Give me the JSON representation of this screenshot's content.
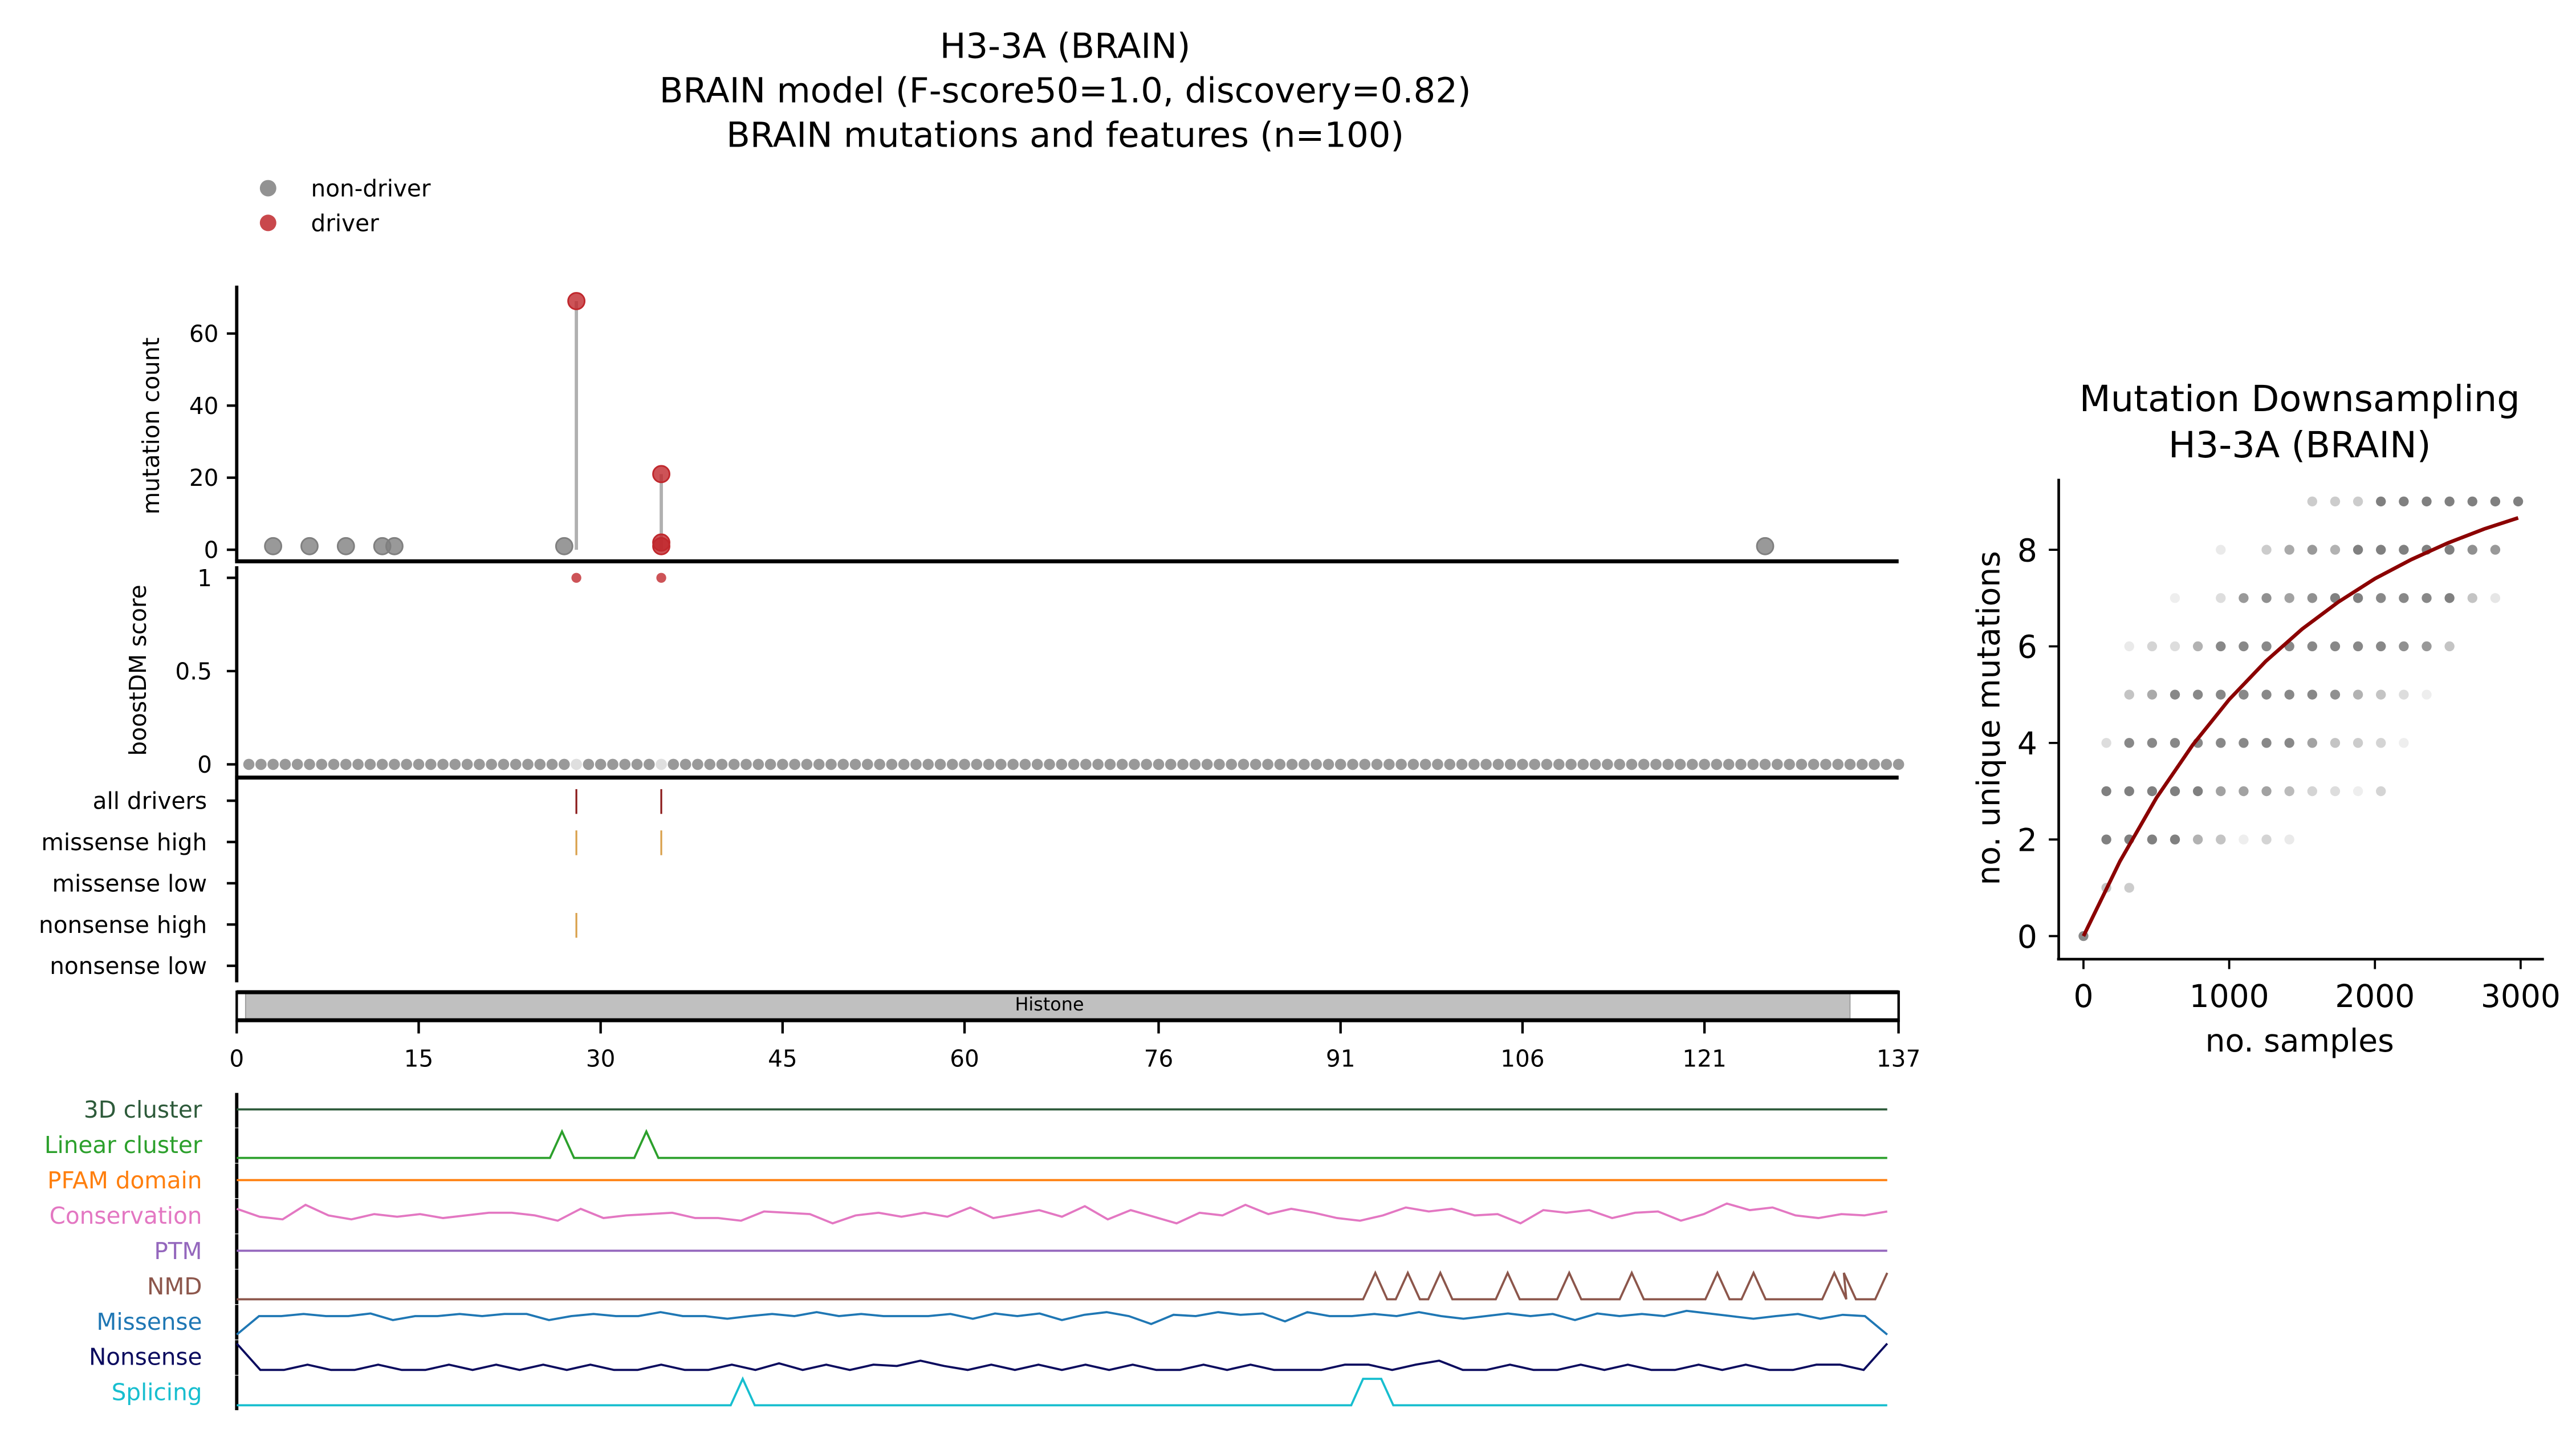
{
  "main_title": [
    "H3-3A (BRAIN)",
    "BRAIN model (F-score50=1.0, discovery=0.82)",
    "BRAIN mutations and features (n=100)"
  ],
  "legend": [
    {
      "label": "non-driver",
      "color": "#7f7f7f"
    },
    {
      "label": "driver",
      "color": "#c0282d"
    }
  ],
  "colors": {
    "non_driver": "#7f7f7f",
    "driver": "#c0282d",
    "stem": "#b0b0b0",
    "all_drivers": "#8b1a1a",
    "high": "#d9a04a",
    "domain_fill": "#c0c0c0",
    "curve": "#8b0000",
    "scatter": "#555555"
  },
  "chart_data": [
    {
      "type": "scatter",
      "panel": "mutation-count",
      "ylabel": "mutation count",
      "yticks": [
        0,
        20,
        40,
        60
      ],
      "xlim": [
        0,
        137
      ],
      "points": [
        {
          "pos": 3,
          "count": 1,
          "class": "non-driver"
        },
        {
          "pos": 6,
          "count": 1,
          "class": "non-driver"
        },
        {
          "pos": 9,
          "count": 1,
          "class": "non-driver"
        },
        {
          "pos": 12,
          "count": 1,
          "class": "non-driver"
        },
        {
          "pos": 13,
          "count": 1,
          "class": "non-driver"
        },
        {
          "pos": 27,
          "count": 1,
          "class": "non-driver"
        },
        {
          "pos": 28,
          "count": 69,
          "class": "driver"
        },
        {
          "pos": 35,
          "count": 21,
          "class": "driver"
        },
        {
          "pos": 35,
          "count": 2,
          "class": "driver"
        },
        {
          "pos": 35,
          "count": 1,
          "class": "driver"
        },
        {
          "pos": 126,
          "count": 1,
          "class": "non-driver"
        }
      ],
      "stems": [
        {
          "pos": 28,
          "max": 69
        },
        {
          "pos": 35,
          "max": 21
        }
      ]
    },
    {
      "type": "scatter",
      "panel": "boostdm",
      "ylabel": "boostDM score",
      "yticks": [
        0,
        0.5,
        1
      ],
      "ytick_labels": [
        "0",
        "0.5",
        "1"
      ],
      "position_range": [
        1,
        137
      ],
      "default_score": 0,
      "drivers": [
        {
          "pos": 28,
          "score": 1
        },
        {
          "pos": 35,
          "score": 1
        }
      ]
    },
    {
      "type": "table",
      "panel": "driver-tracks",
      "rows": [
        {
          "label": "all drivers",
          "positions": [
            28,
            35
          ],
          "color_key": "all_drivers"
        },
        {
          "label": "missense high",
          "positions": [
            28,
            35
          ],
          "color_key": "high"
        },
        {
          "label": "missense low",
          "positions": [],
          "color_key": "high"
        },
        {
          "label": "nonsense high",
          "positions": [
            28
          ],
          "color_key": "high"
        },
        {
          "label": "nonsense low",
          "positions": [],
          "color_key": "high"
        }
      ]
    },
    {
      "type": "bar",
      "panel": "domain",
      "domains": [
        {
          "name": "Histone",
          "start": 1,
          "end": 133
        }
      ],
      "xticks": [
        0,
        15,
        30,
        45,
        60,
        76,
        91,
        106,
        121,
        137
      ]
    },
    {
      "type": "line",
      "panel": "features",
      "xlim": [
        0,
        137
      ],
      "tracks": [
        {
          "label": "3D cluster",
          "color": "#2d5a3a",
          "const": 0.5
        },
        {
          "label": "Linear cluster",
          "color": "#2ca02c",
          "peaks": [
            27,
            34
          ]
        },
        {
          "label": "PFAM domain",
          "color": "#ff7f0e",
          "const": 0.5
        },
        {
          "label": "Conservation",
          "color": "#e377c2",
          "values": [
            0.75,
            0.45,
            0.35,
            0.9,
            0.5,
            0.35,
            0.55,
            0.45,
            0.55,
            0.4,
            0.5,
            0.6,
            0.6,
            0.5,
            0.3,
            0.75,
            0.4,
            0.5,
            0.55,
            0.6,
            0.4,
            0.4,
            0.3,
            0.65,
            0.6,
            0.55,
            0.2,
            0.5,
            0.6,
            0.45,
            0.6,
            0.45,
            0.8,
            0.4,
            0.55,
            0.7,
            0.45,
            0.85,
            0.35,
            0.7,
            0.45,
            0.2,
            0.6,
            0.5,
            0.9,
            0.55,
            0.75,
            0.6,
            0.4,
            0.3,
            0.5,
            0.8,
            0.65,
            0.75,
            0.5,
            0.55,
            0.2,
            0.7,
            0.6,
            0.7,
            0.4,
            0.6,
            0.65,
            0.3,
            0.55,
            0.95,
            0.7,
            0.8,
            0.5,
            0.4,
            0.55,
            0.5,
            0.65
          ]
        },
        {
          "label": "PTM",
          "color": "#9467bd",
          "const": 0.5
        },
        {
          "label": "NMD",
          "color": "#8c564b",
          "peaks": [
            94.5,
            97.2,
            99.9,
            105.5,
            110.6,
            115.8,
            122.9,
            125.9,
            132.6,
            133.4,
            137
          ]
        },
        {
          "label": "Missense",
          "color": "#1f77b4",
          "values": [
            0,
            0.7,
            0.7,
            0.78,
            0.7,
            0.7,
            0.8,
            0.55,
            0.7,
            0.7,
            0.78,
            0.7,
            0.78,
            0.78,
            0.55,
            0.7,
            0.78,
            0.7,
            0.7,
            0.85,
            0.7,
            0.7,
            0.6,
            0.7,
            0.78,
            0.7,
            0.85,
            0.7,
            0.78,
            0.7,
            0.7,
            0.7,
            0.78,
            0.6,
            0.8,
            0.7,
            0.8,
            0.55,
            0.75,
            0.85,
            0.7,
            0.4,
            0.75,
            0.7,
            0.85,
            0.75,
            0.8,
            0.5,
            0.85,
            0.7,
            0.7,
            0.78,
            0.7,
            0.85,
            0.7,
            0.6,
            0.7,
            0.8,
            0.7,
            0.78,
            0.55,
            0.8,
            0.7,
            0.78,
            0.7,
            0.9,
            0.8,
            0.7,
            0.6,
            0.7,
            0.78,
            0.6,
            0.75,
            0.7,
            0
          ]
        },
        {
          "label": "Nonsense",
          "color": "#0b0b5e",
          "values": [
            1,
            0,
            0,
            0.2,
            0,
            0,
            0.2,
            0,
            0,
            0.2,
            0,
            0.2,
            0,
            0.2,
            0,
            0.2,
            0,
            0,
            0.2,
            0,
            0,
            0.2,
            0,
            0.25,
            0,
            0.2,
            0,
            0.2,
            0.15,
            0.35,
            0.15,
            0,
            0.2,
            0,
            0.2,
            0,
            0.2,
            0,
            0.2,
            0,
            0,
            0.2,
            0,
            0.2,
            0,
            0,
            0,
            0.2,
            0.2,
            0,
            0.2,
            0.35,
            0,
            0,
            0.2,
            0,
            0,
            0.2,
            0,
            0.2,
            0,
            0,
            0.2,
            0,
            0.2,
            0,
            0,
            0.2,
            0.2,
            0,
            1
          ]
        },
        {
          "label": "Splicing",
          "color": "#17becf",
          "peaks": [
            42
          ],
          "plateaus": [
            [
              93.5,
              95
            ]
          ]
        }
      ]
    },
    {
      "type": "scatter",
      "panel": "downsampling",
      "title": [
        "Mutation Downsampling",
        "H3-3A (BRAIN)"
      ],
      "xlabel": "no. samples",
      "ylabel": "no. unique mutations",
      "xticks": [
        0,
        1000,
        2000,
        3000
      ],
      "yticks": [
        0,
        2,
        4,
        6,
        8
      ],
      "xlim": [
        -170,
        3150
      ],
      "ylim": [
        -0.45,
        9.5
      ],
      "rows": [
        {
          "y": 9,
          "x": [
            1570,
            1727,
            1884,
            2041,
            2198,
            2355,
            2512,
            2669,
            2826,
            2983
          ],
          "alpha": [
            0.3,
            0.3,
            0.3,
            0.75,
            0.75,
            0.75,
            0.75,
            0.75,
            0.75,
            0.75
          ]
        },
        {
          "y": 8,
          "x": [
            942,
            1256,
            1413,
            1570,
            1727,
            1884,
            2041,
            2198,
            2355,
            2512,
            2669,
            2826
          ],
          "alpha": [
            0.12,
            0.3,
            0.5,
            0.6,
            0.45,
            0.75,
            0.75,
            0.75,
            0.75,
            0.75,
            0.65,
            0.6
          ]
        },
        {
          "y": 7,
          "x": [
            628,
            942,
            1099,
            1256,
            1413,
            1570,
            1727,
            1884,
            2041,
            2198,
            2355,
            2512,
            2669,
            2826
          ],
          "alpha": [
            0.1,
            0.2,
            0.6,
            0.65,
            0.55,
            0.65,
            0.75,
            0.75,
            0.7,
            0.7,
            0.7,
            0.75,
            0.35,
            0.15
          ]
        },
        {
          "y": 6,
          "x": [
            314,
            471,
            628,
            785,
            942,
            1099,
            1256,
            1413,
            1570,
            1727,
            1884,
            2041,
            2198,
            2355,
            2512
          ],
          "alpha": [
            0.12,
            0.25,
            0.2,
            0.45,
            0.7,
            0.7,
            0.7,
            0.7,
            0.7,
            0.7,
            0.7,
            0.7,
            0.65,
            0.6,
            0.35
          ]
        },
        {
          "y": 5,
          "x": [
            314,
            471,
            628,
            785,
            942,
            1099,
            1256,
            1413,
            1570,
            1727,
            1884,
            2041,
            2198,
            2355
          ],
          "alpha": [
            0.35,
            0.5,
            0.7,
            0.7,
            0.7,
            0.7,
            0.7,
            0.7,
            0.7,
            0.65,
            0.45,
            0.35,
            0.2,
            0.1
          ]
        },
        {
          "y": 4,
          "x": [
            157,
            314,
            471,
            628,
            785,
            942,
            1099,
            1256,
            1413,
            1570,
            1727,
            1884,
            2041,
            2198
          ],
          "alpha": [
            0.2,
            0.7,
            0.7,
            0.7,
            0.7,
            0.7,
            0.7,
            0.7,
            0.7,
            0.55,
            0.35,
            0.3,
            0.25,
            0.1
          ]
        },
        {
          "y": 3,
          "x": [
            157,
            314,
            471,
            628,
            785,
            942,
            1099,
            1256,
            1413,
            1570,
            1727,
            1884,
            2041
          ],
          "alpha": [
            0.75,
            0.75,
            0.75,
            0.75,
            0.75,
            0.55,
            0.55,
            0.55,
            0.4,
            0.25,
            0.2,
            0.1,
            0.25
          ]
        },
        {
          "y": 2,
          "x": [
            157,
            314,
            471,
            628,
            785,
            942,
            1099,
            1256,
            1413
          ],
          "alpha": [
            0.75,
            0.75,
            0.75,
            0.75,
            0.45,
            0.35,
            0.1,
            0.25,
            0.12
          ]
        },
        {
          "y": 1,
          "x": [
            157,
            314
          ],
          "alpha": [
            0.35,
            0.3
          ]
        },
        {
          "y": 0,
          "x": [
            0
          ],
          "alpha": [
            0.7
          ]
        }
      ],
      "fit_curve": {
        "x": [
          0,
          250,
          500,
          750,
          1000,
          1250,
          1500,
          1750,
          2000,
          2250,
          2500,
          2750,
          2983
        ],
        "y": [
          0,
          1.55,
          2.86,
          3.96,
          4.9,
          5.69,
          6.36,
          6.92,
          7.4,
          7.8,
          8.14,
          8.43,
          8.66
        ]
      }
    }
  ]
}
